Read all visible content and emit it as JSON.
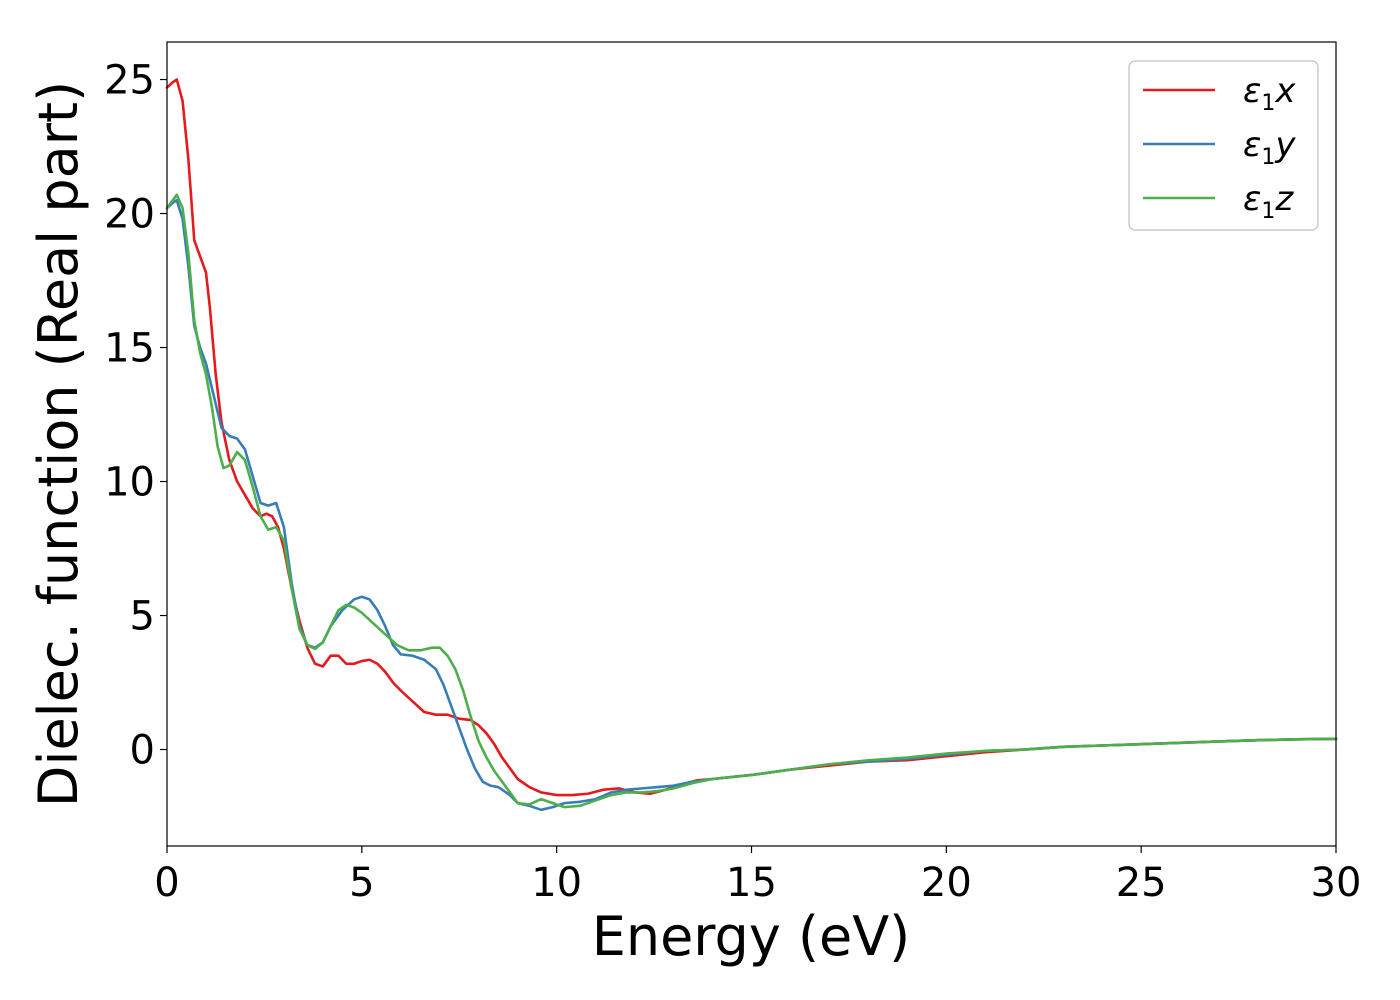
{
  "chart_data": {
    "type": "line",
    "title": "",
    "xlabel": "Energy (eV)",
    "ylabel": "Dielec. function (Real part)",
    "xlim": [
      0,
      30
    ],
    "ylim": [
      -3.6,
      26.4
    ],
    "xticks": [
      0,
      5,
      10,
      15,
      20,
      25,
      30
    ],
    "yticks": [
      0,
      5,
      10,
      15,
      20,
      25
    ],
    "xtick_labels": [
      "0",
      "5",
      "10",
      "15",
      "20",
      "25",
      "30"
    ],
    "ytick_labels": [
      "0",
      "5",
      "10",
      "15",
      "20",
      "25"
    ],
    "grid": false,
    "legend_position": "top-right",
    "series": [
      {
        "name": "ε1x",
        "label_base": "ε",
        "label_sub": "1",
        "label_axis": "x",
        "color": "#e41a1c",
        "x": [
          0,
          0.15,
          0.25,
          0.4,
          0.55,
          0.7,
          0.85,
          1.0,
          1.1,
          1.25,
          1.4,
          1.6,
          1.8,
          2.0,
          2.2,
          2.4,
          2.55,
          2.7,
          2.85,
          3.0,
          3.2,
          3.4,
          3.6,
          3.8,
          4.0,
          4.2,
          4.4,
          4.6,
          4.8,
          5.0,
          5.2,
          5.4,
          5.6,
          5.8,
          6.0,
          6.3,
          6.6,
          6.9,
          7.2,
          7.5,
          7.8,
          8.0,
          8.2,
          8.4,
          8.6,
          8.8,
          9.0,
          9.3,
          9.6,
          10.0,
          10.4,
          10.8,
          11.2,
          11.6,
          12.0,
          12.4,
          12.8,
          13.2,
          13.6,
          14.0,
          15,
          16,
          17,
          18,
          19,
          20,
          21,
          22,
          23,
          24,
          25,
          26,
          27,
          28,
          29,
          30
        ],
        "y": [
          24.7,
          24.9,
          25.0,
          24.2,
          22.0,
          19.0,
          18.4,
          17.8,
          16.5,
          14.0,
          12.2,
          10.8,
          10.0,
          9.5,
          9.0,
          8.7,
          8.8,
          8.7,
          8.3,
          7.5,
          6.0,
          4.8,
          3.8,
          3.2,
          3.1,
          3.5,
          3.5,
          3.2,
          3.2,
          3.3,
          3.35,
          3.2,
          2.9,
          2.5,
          2.2,
          1.8,
          1.4,
          1.3,
          1.3,
          1.15,
          1.1,
          0.9,
          0.6,
          0.2,
          -0.3,
          -0.7,
          -1.1,
          -1.4,
          -1.6,
          -1.7,
          -1.7,
          -1.65,
          -1.5,
          -1.45,
          -1.6,
          -1.65,
          -1.5,
          -1.3,
          -1.15,
          -1.1,
          -0.95,
          -0.75,
          -0.6,
          -0.45,
          -0.4,
          -0.25,
          -0.1,
          0.0,
          0.1,
          0.15,
          0.2,
          0.25,
          0.3,
          0.35,
          0.38,
          0.4
        ]
      },
      {
        "name": "ε1y",
        "label_base": "ε",
        "label_sub": "1",
        "label_axis": "y",
        "color": "#377eb8",
        "x": [
          0,
          0.15,
          0.25,
          0.4,
          0.55,
          0.7,
          0.85,
          1.0,
          1.2,
          1.4,
          1.6,
          1.8,
          2.0,
          2.2,
          2.4,
          2.6,
          2.8,
          3.0,
          3.2,
          3.4,
          3.6,
          3.8,
          4.0,
          4.2,
          4.5,
          4.8,
          5.0,
          5.2,
          5.4,
          5.6,
          5.8,
          6.0,
          6.3,
          6.6,
          6.9,
          7.1,
          7.3,
          7.5,
          7.7,
          7.9,
          8.1,
          8.3,
          8.5,
          8.8,
          9.0,
          9.3,
          9.6,
          9.9,
          10.2,
          10.6,
          11.0,
          11.4,
          11.8,
          12.2,
          12.6,
          13.0,
          13.5,
          14.0,
          15,
          16,
          17,
          18,
          19,
          20,
          21,
          22,
          23,
          24,
          25,
          26,
          27,
          28,
          29,
          30
        ],
        "y": [
          20.2,
          20.4,
          20.5,
          19.8,
          18.0,
          15.8,
          15.0,
          14.4,
          13.2,
          12.0,
          11.7,
          11.6,
          11.2,
          10.2,
          9.2,
          9.1,
          9.2,
          8.3,
          6.2,
          4.6,
          3.9,
          3.8,
          4.0,
          4.6,
          5.2,
          5.6,
          5.7,
          5.6,
          5.2,
          4.6,
          3.9,
          3.55,
          3.5,
          3.35,
          3.0,
          2.4,
          1.6,
          0.8,
          0.0,
          -0.7,
          -1.2,
          -1.35,
          -1.4,
          -1.7,
          -2.0,
          -2.1,
          -2.25,
          -2.15,
          -2.0,
          -1.95,
          -1.85,
          -1.6,
          -1.5,
          -1.45,
          -1.4,
          -1.35,
          -1.2,
          -1.1,
          -0.95,
          -0.75,
          -0.55,
          -0.45,
          -0.35,
          -0.2,
          -0.05,
          0.0,
          0.1,
          0.15,
          0.2,
          0.25,
          0.3,
          0.35,
          0.38,
          0.4
        ]
      },
      {
        "name": "ε1z",
        "label_base": "ε",
        "label_sub": "1",
        "label_axis": "z",
        "color": "#4daf4a",
        "x": [
          0,
          0.15,
          0.25,
          0.4,
          0.55,
          0.7,
          0.85,
          1.0,
          1.15,
          1.3,
          1.45,
          1.6,
          1.8,
          2.0,
          2.2,
          2.4,
          2.6,
          2.8,
          3.0,
          3.2,
          3.4,
          3.6,
          3.8,
          4.0,
          4.2,
          4.4,
          4.6,
          4.8,
          5.0,
          5.3,
          5.6,
          5.9,
          6.2,
          6.5,
          6.8,
          7.0,
          7.2,
          7.4,
          7.6,
          7.8,
          8.0,
          8.2,
          8.4,
          8.6,
          8.8,
          9.0,
          9.3,
          9.6,
          9.9,
          10.2,
          10.6,
          11.0,
          11.4,
          11.8,
          12.2,
          12.6,
          13.0,
          13.5,
          14.0,
          15,
          16,
          17,
          18,
          19,
          20,
          21,
          22,
          23,
          24,
          25,
          26,
          27,
          28,
          29,
          30
        ],
        "y": [
          20.2,
          20.5,
          20.7,
          20.2,
          18.5,
          16.0,
          14.8,
          14.0,
          12.8,
          11.3,
          10.5,
          10.6,
          11.1,
          10.8,
          9.8,
          8.7,
          8.2,
          8.3,
          7.8,
          6.0,
          4.5,
          3.9,
          3.75,
          4.0,
          4.6,
          5.2,
          5.4,
          5.3,
          5.1,
          4.7,
          4.3,
          3.9,
          3.7,
          3.7,
          3.8,
          3.8,
          3.5,
          3.0,
          2.2,
          1.2,
          0.3,
          -0.3,
          -0.8,
          -1.2,
          -1.6,
          -2.0,
          -2.05,
          -1.85,
          -2.0,
          -2.15,
          -2.1,
          -1.9,
          -1.7,
          -1.6,
          -1.6,
          -1.55,
          -1.45,
          -1.25,
          -1.1,
          -0.95,
          -0.75,
          -0.55,
          -0.4,
          -0.3,
          -0.15,
          -0.05,
          0.0,
          0.1,
          0.15,
          0.2,
          0.25,
          0.3,
          0.35,
          0.38,
          0.4
        ]
      }
    ]
  }
}
